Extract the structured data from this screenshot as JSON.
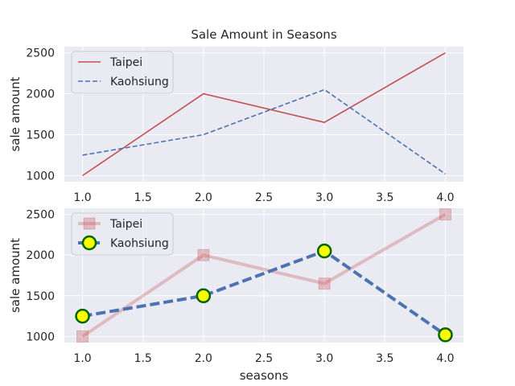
{
  "chart_data": [
    {
      "type": "line",
      "title": "Sale Amount in Seasons",
      "xlabel": "",
      "ylabel": "sale amount",
      "x": [
        1.0,
        2.0,
        3.0,
        4.0
      ],
      "xlim": [
        0.85,
        4.15
      ],
      "ylim": [
        925,
        2575
      ],
      "xticks": [
        1.0,
        1.5,
        2.0,
        2.5,
        3.0,
        3.5,
        4.0
      ],
      "xtick_labels": [
        "1.0",
        "1.5",
        "2.0",
        "2.5",
        "3.0",
        "3.5",
        "4.0"
      ],
      "yticks": [
        1000,
        1500,
        2000,
        2500
      ],
      "ytick_labels": [
        "1000",
        "1500",
        "2000",
        "2500"
      ],
      "grid": true,
      "legend_position": "top-left",
      "series": [
        {
          "name": "Taipei",
          "values": [
            1000,
            2000,
            1650,
            2500
          ],
          "color": "#c44e52",
          "style": "solid",
          "marker": "none"
        },
        {
          "name": "Kaohsiung",
          "values": [
            1250,
            1500,
            2050,
            1020
          ],
          "color": "#4c72b0",
          "style": "dashed",
          "marker": "none"
        }
      ]
    },
    {
      "type": "line",
      "title": "",
      "xlabel": "seasons",
      "ylabel": "sale amount",
      "x": [
        1.0,
        2.0,
        3.0,
        4.0
      ],
      "xlim": [
        0.85,
        4.15
      ],
      "ylim": [
        925,
        2575
      ],
      "xticks": [
        1.0,
        1.5,
        2.0,
        2.5,
        3.0,
        3.5,
        4.0
      ],
      "xtick_labels": [
        "1.0",
        "1.5",
        "2.0",
        "2.5",
        "3.0",
        "3.5",
        "4.0"
      ],
      "yticks": [
        1000,
        1500,
        2000,
        2500
      ],
      "ytick_labels": [
        "1000",
        "1500",
        "2000",
        "2500"
      ],
      "grid": true,
      "legend_position": "top-left",
      "series": [
        {
          "name": "Taipei",
          "values": [
            1000,
            2000,
            1650,
            2500
          ],
          "color": "#c44e52",
          "opacity": 0.3,
          "style": "solid",
          "marker": "square"
        },
        {
          "name": "Kaohsiung",
          "values": [
            1250,
            1500,
            2050,
            1020
          ],
          "color": "#4c72b0",
          "style": "dashed",
          "marker": "circle",
          "marker_face": "#ffff00",
          "marker_edge": "#006400"
        }
      ]
    }
  ],
  "colors": {
    "plot_background": "#eaeaf2",
    "grid": "#ffffff",
    "text": "#262626"
  }
}
